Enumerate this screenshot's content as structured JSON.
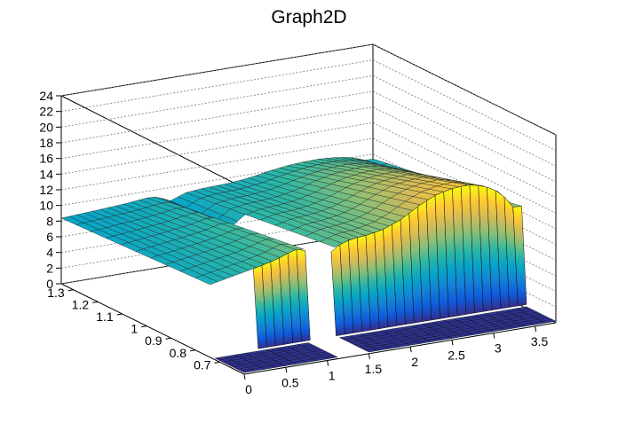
{
  "chart_data": {
    "type": "surface",
    "title": "Graph2D",
    "xlabel": "",
    "ylabel": "",
    "zlabel": "",
    "x_range": [
      0,
      3.75
    ],
    "y_range": [
      0.6,
      1.35
    ],
    "z_range": [
      0,
      24
    ],
    "x_ticks": [
      "0",
      "0.5",
      "1",
      "1.5",
      "2",
      "2.5",
      "3",
      "3.5"
    ],
    "y_ticks": [
      "0.7",
      "0.8",
      "0.9",
      "1",
      "1.1",
      "1.2",
      "1.3"
    ],
    "z_ticks": [
      "0",
      "2",
      "4",
      "6",
      "8",
      "10",
      "12",
      "14",
      "16",
      "18",
      "20",
      "22",
      "24"
    ],
    "grid": true,
    "colormap": [
      "#352a87",
      "#0f5cdd",
      "#1481d6",
      "#06a4ca",
      "#2eb7a4",
      "#87bf77",
      "#d1bb59",
      "#fec832",
      "#f9fb0e"
    ],
    "surface_profile": {
      "x": [
        0.0,
        0.2,
        0.4,
        0.6,
        0.8,
        1.0,
        1.1,
        1.2,
        1.3,
        1.5,
        1.7,
        1.9,
        2.1,
        2.3,
        2.5,
        2.7,
        2.9,
        3.1,
        3.3,
        3.5,
        3.65
      ],
      "z_front": [
        9.5,
        10.0,
        10.5,
        11.0,
        11.6,
        12.5,
        12.8,
        11.5,
        9.0,
        12.0,
        12.8,
        13.0,
        13.5,
        14.5,
        16.0,
        17.2,
        17.8,
        18.0,
        17.4,
        16.0,
        13.5
      ],
      "z_back_left": 8.0
    },
    "gap_x": [
      1.1,
      1.5
    ]
  }
}
